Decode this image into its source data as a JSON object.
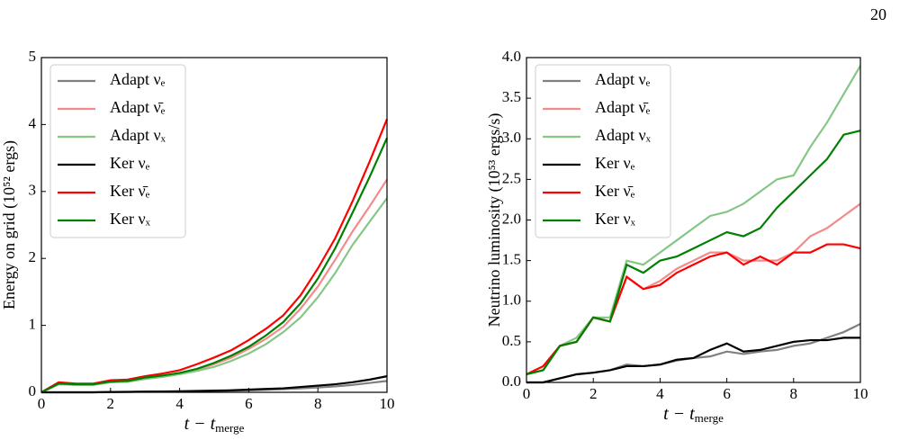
{
  "page_number": "20",
  "chart_data": [
    {
      "type": "line",
      "xlabel": {
        "text": "t − t",
        "subscript": "merge"
      },
      "ylabel": "Energy on grid (10⁵² ergs)",
      "xlim": [
        0,
        10
      ],
      "ylim": [
        0,
        5
      ],
      "xticks": [
        0,
        2,
        4,
        6,
        8,
        10
      ],
      "yticks": [
        0,
        1,
        2,
        3,
        4,
        5
      ],
      "legend": "upper left",
      "x": [
        0,
        0.5,
        1,
        1.5,
        2,
        2.5,
        3,
        3.5,
        4,
        4.5,
        5,
        5.5,
        6,
        6.5,
        7,
        7.5,
        8,
        8.5,
        9,
        9.5,
        10
      ],
      "series": [
        {
          "name": "Adapt νₑ",
          "color": "#808080",
          "values": [
            0,
            0,
            0,
            0,
            0.004,
            0.006,
            0.008,
            0.01,
            0.012,
            0.015,
            0.02,
            0.024,
            0.03,
            0.038,
            0.046,
            0.058,
            0.072,
            0.088,
            0.11,
            0.14,
            0.17
          ]
        },
        {
          "name": "Adapt ν̄ₑ",
          "color": "#f58a8a",
          "values": [
            0,
            0.12,
            0.11,
            0.11,
            0.15,
            0.16,
            0.2,
            0.24,
            0.28,
            0.34,
            0.42,
            0.52,
            0.65,
            0.8,
            0.98,
            1.25,
            1.58,
            1.98,
            2.4,
            2.78,
            3.18
          ]
        },
        {
          "name": "Adapt νₓ",
          "color": "#86c686",
          "values": [
            0,
            0.12,
            0.11,
            0.11,
            0.15,
            0.16,
            0.2,
            0.23,
            0.27,
            0.32,
            0.38,
            0.47,
            0.58,
            0.72,
            0.9,
            1.12,
            1.42,
            1.78,
            2.2,
            2.55,
            2.9
          ]
        },
        {
          "name": "Ker νₑ",
          "color": "#000000",
          "values": [
            0,
            0,
            0,
            0,
            0.005,
            0.007,
            0.01,
            0.012,
            0.015,
            0.02,
            0.025,
            0.03,
            0.04,
            0.05,
            0.06,
            0.08,
            0.1,
            0.12,
            0.15,
            0.19,
            0.24
          ]
        },
        {
          "name": "Ker ν̄ₑ",
          "color": "#ff0000",
          "values": [
            0,
            0.15,
            0.13,
            0.13,
            0.18,
            0.19,
            0.24,
            0.28,
            0.33,
            0.42,
            0.52,
            0.63,
            0.78,
            0.95,
            1.15,
            1.45,
            1.85,
            2.3,
            2.85,
            3.45,
            4.08
          ]
        },
        {
          "name": "Ker νₓ",
          "color": "#008000",
          "values": [
            0,
            0.13,
            0.12,
            0.12,
            0.16,
            0.17,
            0.22,
            0.25,
            0.29,
            0.35,
            0.44,
            0.55,
            0.68,
            0.85,
            1.05,
            1.33,
            1.7,
            2.15,
            2.68,
            3.22,
            3.8
          ]
        }
      ]
    },
    {
      "type": "line",
      "xlabel": {
        "text": "t − t",
        "subscript": "merge"
      },
      "ylabel": "Neutrino luminosity (10⁵³ ergs/s)",
      "xlim": [
        0,
        10
      ],
      "ylim": [
        0,
        4
      ],
      "xticks": [
        0,
        2,
        4,
        6,
        8,
        10
      ],
      "yticks": [
        {
          "value": 0,
          "label": "0.0"
        },
        0.5,
        {
          "value": 1,
          "label": "1.0"
        },
        1.5,
        {
          "value": 2,
          "label": "2.0"
        },
        2.5,
        {
          "value": 3,
          "label": "3.0"
        },
        3.5,
        {
          "value": 4,
          "label": "4.0"
        }
      ],
      "legend": "upper left",
      "x": [
        0,
        0.5,
        1,
        1.5,
        2,
        2.5,
        3,
        3.5,
        4,
        4.5,
        5,
        5.5,
        6,
        6.5,
        7,
        7.5,
        8,
        8.5,
        9,
        9.5,
        10
      ],
      "series": [
        {
          "name": "Adapt νₑ",
          "color": "#808080",
          "values": [
            0,
            0,
            0.05,
            0.1,
            0.12,
            0.15,
            0.22,
            0.2,
            0.22,
            0.27,
            0.3,
            0.32,
            0.38,
            0.35,
            0.38,
            0.4,
            0.45,
            0.48,
            0.55,
            0.62,
            0.72
          ]
        },
        {
          "name": "Adapt ν̄ₑ",
          "color": "#f58a8a",
          "values": [
            0.1,
            0.15,
            0.45,
            0.5,
            0.8,
            0.75,
            1.3,
            1.15,
            1.25,
            1.4,
            1.5,
            1.6,
            1.6,
            1.5,
            1.5,
            1.5,
            1.6,
            1.8,
            1.9,
            2.05,
            2.2
          ]
        },
        {
          "name": "Adapt νₓ",
          "color": "#86c686",
          "values": [
            0.1,
            0.15,
            0.45,
            0.55,
            0.8,
            0.8,
            1.5,
            1.45,
            1.6,
            1.75,
            1.9,
            2.05,
            2.1,
            2.2,
            2.35,
            2.5,
            2.55,
            2.9,
            3.2,
            3.55,
            3.9
          ]
        },
        {
          "name": "Ker νₑ",
          "color": "#000000",
          "values": [
            0,
            0,
            0.05,
            0.1,
            0.12,
            0.15,
            0.2,
            0.2,
            0.22,
            0.28,
            0.3,
            0.4,
            0.48,
            0.38,
            0.4,
            0.45,
            0.5,
            0.52,
            0.52,
            0.55,
            0.55
          ]
        },
        {
          "name": "Ker ν̄ₑ",
          "color": "#ff0000",
          "values": [
            0.1,
            0.2,
            0.45,
            0.5,
            0.8,
            0.75,
            1.3,
            1.15,
            1.2,
            1.35,
            1.45,
            1.55,
            1.6,
            1.45,
            1.55,
            1.45,
            1.6,
            1.6,
            1.7,
            1.7,
            1.65
          ]
        },
        {
          "name": "Ker νₓ",
          "color": "#008000",
          "values": [
            0.1,
            0.15,
            0.45,
            0.5,
            0.8,
            0.75,
            1.45,
            1.35,
            1.5,
            1.55,
            1.65,
            1.75,
            1.85,
            1.8,
            1.9,
            2.15,
            2.35,
            2.55,
            2.75,
            3.05,
            3.1
          ]
        }
      ]
    }
  ]
}
